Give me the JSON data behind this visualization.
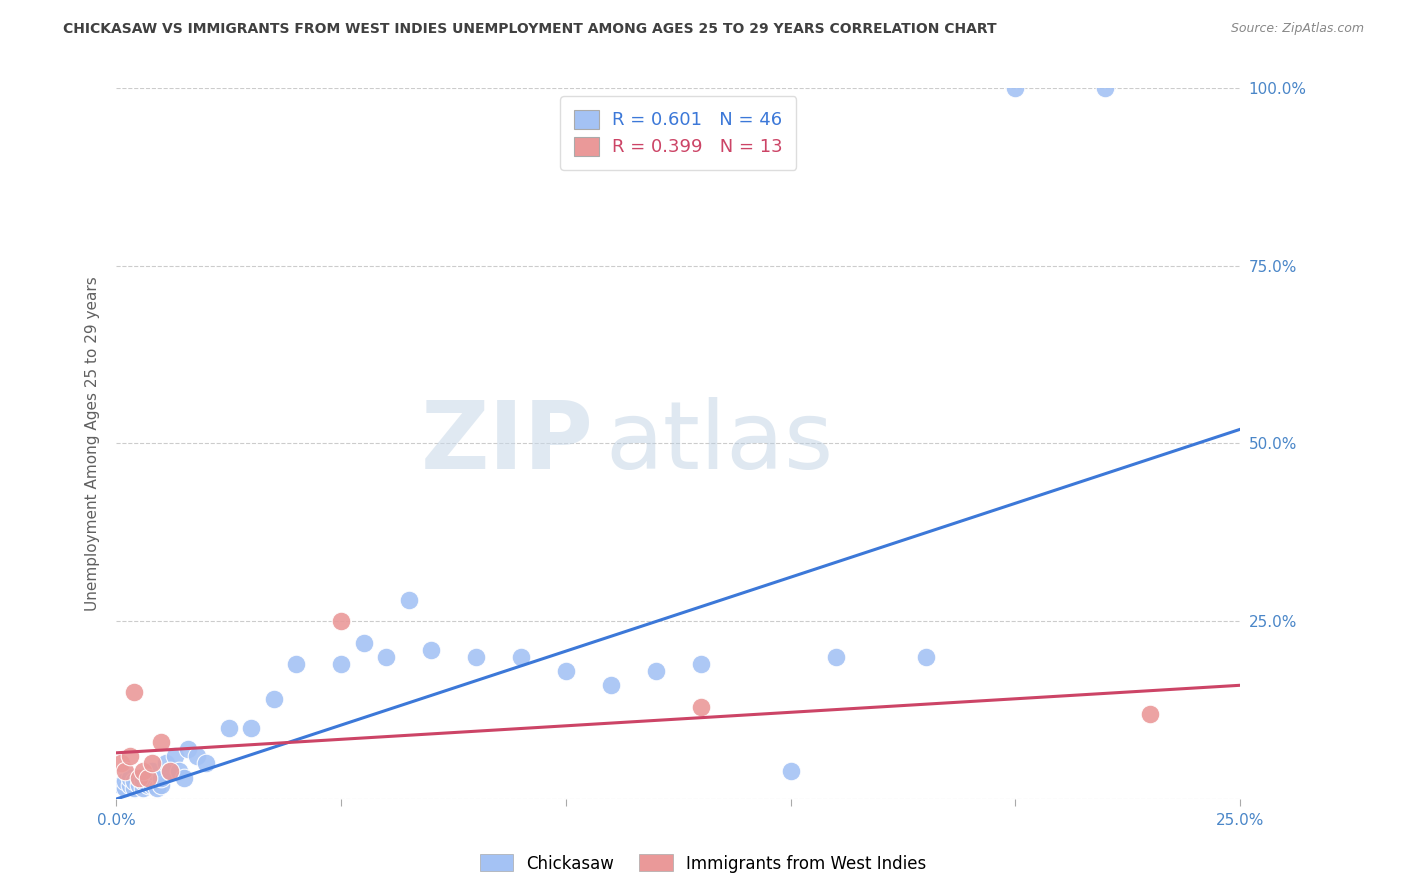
{
  "title": "CHICKASAW VS IMMIGRANTS FROM WEST INDIES UNEMPLOYMENT AMONG AGES 25 TO 29 YEARS CORRELATION CHART",
  "source": "Source: ZipAtlas.com",
  "ylabel": "Unemployment Among Ages 25 to 29 years",
  "watermark_zip": "ZIP",
  "watermark_atlas": "atlas",
  "xlim": [
    0.0,
    0.25
  ],
  "ylim": [
    0.0,
    1.0
  ],
  "chickasaw_R": 0.601,
  "chickasaw_N": 46,
  "west_indies_R": 0.399,
  "west_indies_N": 13,
  "blue_scatter_color": "#a4c2f4",
  "pink_scatter_color": "#ea9999",
  "blue_line_color": "#3c78d8",
  "pink_line_color": "#cc4466",
  "tick_color": "#4a86c8",
  "grid_color": "#cccccc",
  "title_color": "#404040",
  "ylabel_color": "#606060",
  "source_color": "#888888",
  "chickasaw_x": [
    0.001,
    0.002,
    0.002,
    0.003,
    0.003,
    0.004,
    0.004,
    0.005,
    0.005,
    0.006,
    0.006,
    0.007,
    0.007,
    0.008,
    0.008,
    0.009,
    0.01,
    0.01,
    0.011,
    0.012,
    0.013,
    0.014,
    0.015,
    0.016,
    0.018,
    0.02,
    0.025,
    0.03,
    0.035,
    0.04,
    0.05,
    0.055,
    0.06,
    0.065,
    0.07,
    0.08,
    0.09,
    0.1,
    0.11,
    0.12,
    0.13,
    0.15,
    0.16,
    0.18,
    0.2,
    0.22
  ],
  "chickasaw_y": [
    0.02,
    0.015,
    0.025,
    0.02,
    0.03,
    0.015,
    0.025,
    0.02,
    0.03,
    0.015,
    0.025,
    0.02,
    0.03,
    0.02,
    0.04,
    0.015,
    0.02,
    0.03,
    0.05,
    0.04,
    0.06,
    0.04,
    0.03,
    0.07,
    0.06,
    0.05,
    0.1,
    0.1,
    0.14,
    0.19,
    0.19,
    0.22,
    0.2,
    0.28,
    0.21,
    0.2,
    0.2,
    0.18,
    0.16,
    0.18,
    0.19,
    0.04,
    0.2,
    0.2,
    1.0,
    1.0
  ],
  "west_indies_x": [
    0.001,
    0.002,
    0.003,
    0.004,
    0.005,
    0.006,
    0.007,
    0.008,
    0.01,
    0.012,
    0.05,
    0.13,
    0.23
  ],
  "west_indies_y": [
    0.05,
    0.04,
    0.06,
    0.15,
    0.03,
    0.04,
    0.03,
    0.05,
    0.08,
    0.04,
    0.25,
    0.13,
    0.12
  ],
  "blue_trendline_x": [
    0.0,
    0.25
  ],
  "blue_trendline_y": [
    0.0,
    0.52
  ],
  "pink_trendline_x": [
    0.0,
    0.25
  ],
  "pink_trendline_y": [
    0.065,
    0.16
  ]
}
